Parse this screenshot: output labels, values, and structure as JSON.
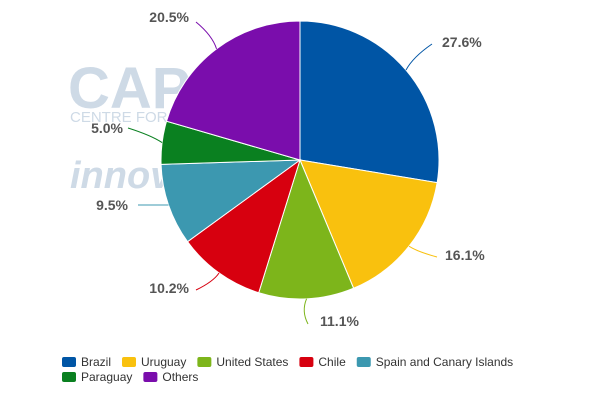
{
  "watermark": {
    "logo_text": "CAPA",
    "tagline": "CENTRE FOR AVIATION",
    "sub_text": "innovata",
    "color": "#c9d6e4"
  },
  "chart_data": {
    "type": "pie",
    "title": "",
    "start_angle_deg": 0,
    "direction": "clockwise",
    "legend_position": "bottom-left",
    "slices": [
      {
        "name": "Brazil",
        "value": 27.6,
        "label": "27.6%",
        "color": "#0055a5"
      },
      {
        "name": "Uruguay",
        "value": 16.1,
        "label": "16.1%",
        "color": "#f9c10e"
      },
      {
        "name": "United States",
        "value": 11.1,
        "label": "11.1%",
        "color": "#7db51b"
      },
      {
        "name": "Chile",
        "value": 10.2,
        "label": "10.2%",
        "color": "#d7000f"
      },
      {
        "name": "Spain and Canary Islands",
        "value": 9.5,
        "label": "9.5%",
        "color": "#3c98b0"
      },
      {
        "name": "Paraguay",
        "value": 5.0,
        "label": "5.0%",
        "color": "#0a8020"
      },
      {
        "name": "Others",
        "value": 20.5,
        "label": "20.5%",
        "color": "#7a0dac"
      }
    ]
  }
}
